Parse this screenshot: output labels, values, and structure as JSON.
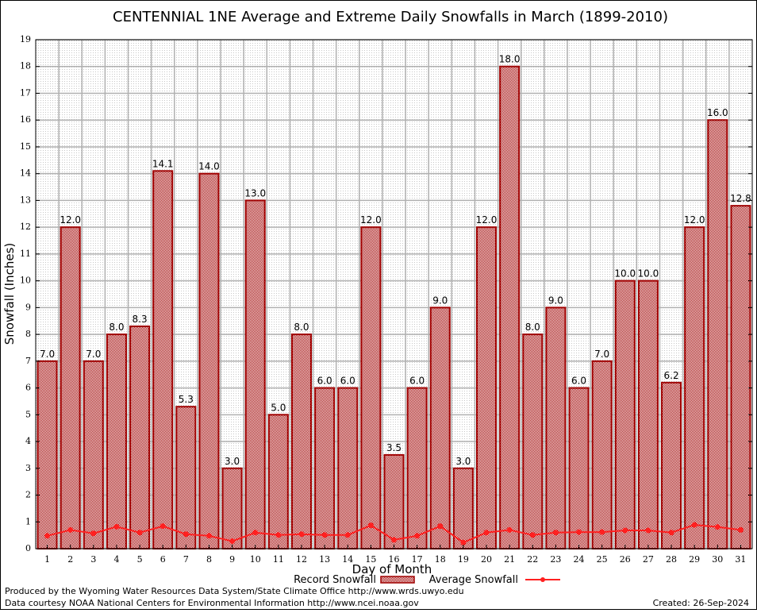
{
  "chart_data": {
    "type": "bar",
    "title": "CENTENNIAL 1NE Average and Extreme Daily Snowfalls in March (1899-2010)",
    "xlabel": "Day of Month",
    "ylabel": "Snowfall (Inches)",
    "ylim": [
      0,
      19
    ],
    "grid": true,
    "legend_placement": "bottom",
    "categories": [
      "1",
      "2",
      "3",
      "4",
      "5",
      "6",
      "7",
      "8",
      "9",
      "10",
      "11",
      "12",
      "13",
      "14",
      "15",
      "16",
      "17",
      "18",
      "19",
      "20",
      "21",
      "22",
      "23",
      "24",
      "25",
      "26",
      "27",
      "28",
      "29",
      "30",
      "31"
    ],
    "series": [
      {
        "name": "Record Snowfall",
        "type": "bar",
        "color": "#a00000",
        "values": [
          7.0,
          12.0,
          7.0,
          8.0,
          8.3,
          14.1,
          5.3,
          14.0,
          3.0,
          13.0,
          5.0,
          8.0,
          6.0,
          6.0,
          12.0,
          3.5,
          6.0,
          9.0,
          3.0,
          12.0,
          18.0,
          8.0,
          9.0,
          6.0,
          7.0,
          10.0,
          10.0,
          6.2,
          12.0,
          16.0,
          12.8
        ],
        "labels": [
          "7.0",
          "12.0",
          "7.0",
          "8.0",
          "8.3",
          "14.1",
          "5.3",
          "14.0",
          "3.0",
          "13.0",
          "5.0",
          "8.0",
          "6.0",
          "6.0",
          "12.0",
          "3.5",
          "6.0",
          "9.0",
          "3.0",
          "12.0",
          "18.0",
          "8.0",
          "9.0",
          "6.0",
          "7.0",
          "10.0",
          "10.0",
          "6.2",
          "12.0",
          "16.0",
          "12.8"
        ]
      },
      {
        "name": "Average Snowfall",
        "type": "line",
        "color": "#ff2020",
        "values": [
          0.48,
          0.7,
          0.57,
          0.82,
          0.6,
          0.84,
          0.54,
          0.48,
          0.28,
          0.6,
          0.51,
          0.54,
          0.51,
          0.51,
          0.87,
          0.33,
          0.48,
          0.84,
          0.23,
          0.6,
          0.7,
          0.51,
          0.6,
          0.62,
          0.62,
          0.68,
          0.68,
          0.6,
          0.89,
          0.81,
          0.7
        ]
      }
    ],
    "yticks": [
      "0",
      "1",
      "2",
      "3",
      "4",
      "5",
      "6",
      "7",
      "8",
      "9",
      "10",
      "11",
      "12",
      "13",
      "14",
      "15",
      "16",
      "17",
      "18",
      "19"
    ]
  },
  "footer": {
    "line1": "Produced by the Wyoming Water Resources Data System/State Climate Office http://www.wrds.uwyo.edu",
    "line2": "Data courtesy NOAA National Centers for Environmental Information http://www.ncei.noaa.gov",
    "created": "Created: 26-Sep-2024"
  }
}
